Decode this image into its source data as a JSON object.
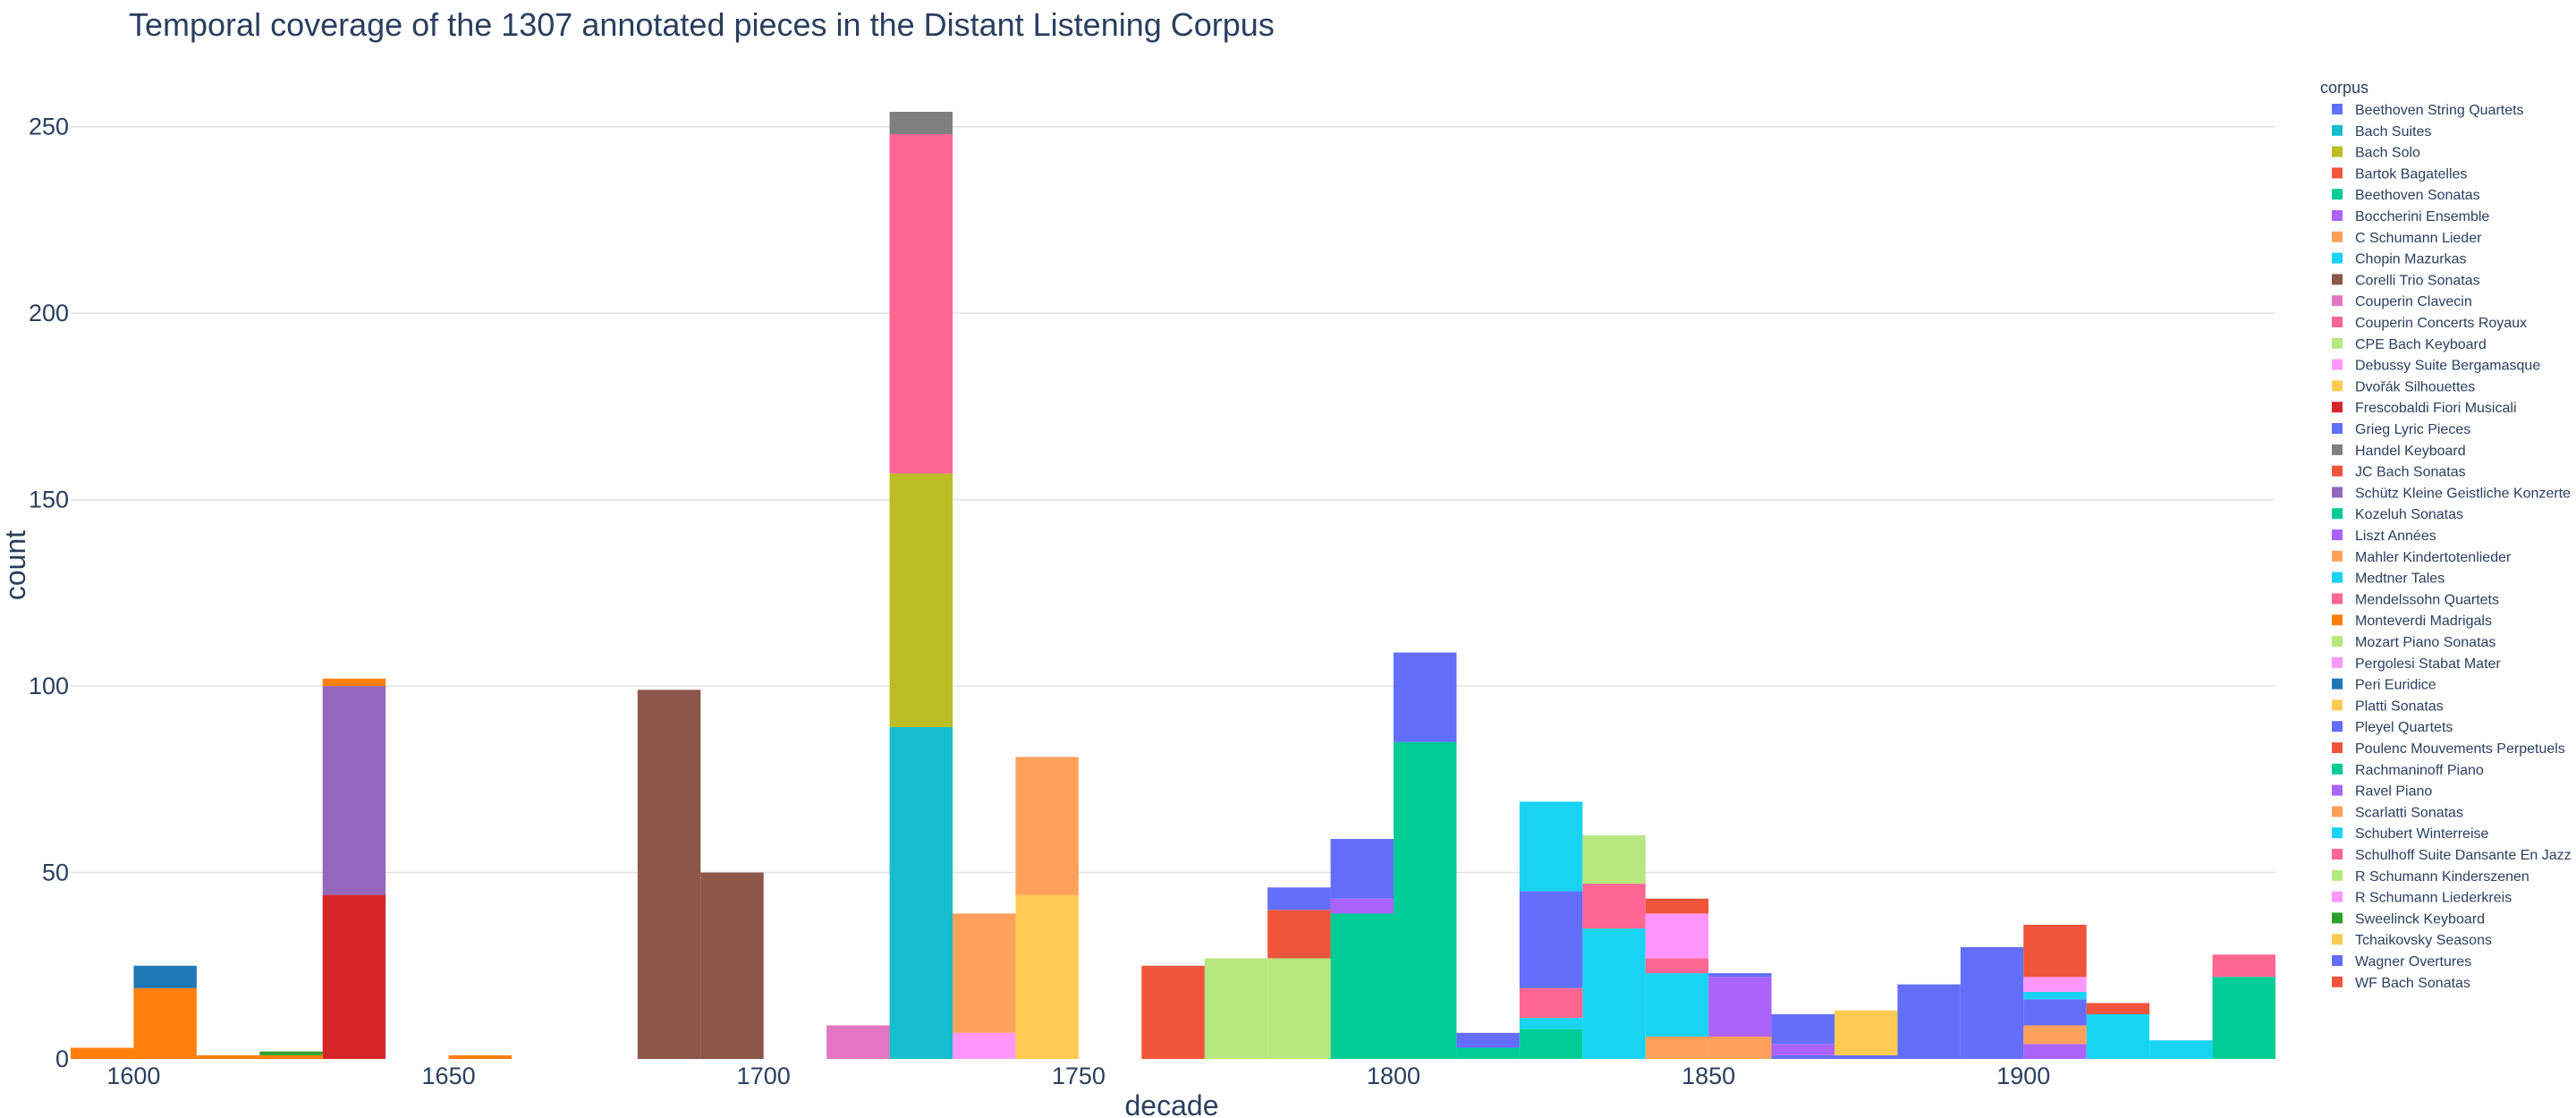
{
  "chart_data": {
    "type": "bar",
    "barmode": "stack",
    "title": "Temporal coverage of the 1307 annotated pieces in the Distant Listening Corpus",
    "xlabel": "decade",
    "ylabel": "count",
    "xlim": [
      1590,
      1940
    ],
    "ylim": [
      0,
      260
    ],
    "bin_width": 10,
    "xticks": [
      1600,
      1650,
      1700,
      1750,
      1800,
      1850,
      1900
    ],
    "yticks": [
      0,
      50,
      100,
      150,
      200,
      250
    ],
    "grid": true,
    "legend": {
      "title": "corpus",
      "placement": "right"
    },
    "series": [
      {
        "name": "Beethoven String Quartets",
        "color": "#636efa",
        "points": []
      },
      {
        "name": "Bach Suites",
        "color": "#17becf",
        "points": [
          [
            1720,
            89
          ]
        ]
      },
      {
        "name": "Bach Solo",
        "color": "#bcbd22",
        "points": [
          [
            1720,
            68
          ]
        ]
      },
      {
        "name": "Bartok Bagatelles",
        "color": "#ef553b",
        "points": []
      },
      {
        "name": "Beethoven Sonatas",
        "color": "#00cc96",
        "points": [
          [
            1790,
            39
          ],
          [
            1800,
            85
          ],
          [
            1820,
            8
          ]
        ]
      },
      {
        "name": "Boccherini Ensemble",
        "color": "#ab63fa",
        "points": [
          [
            1790,
            4
          ]
        ]
      },
      {
        "name": "C Schumann Lieder",
        "color": "#ffa15a",
        "points": [
          [
            1840,
            6
          ],
          [
            1850,
            6
          ]
        ]
      },
      {
        "name": "Chopin Mazurkas",
        "color": "#19d3f3",
        "points": [
          [
            1820,
            3
          ],
          [
            1830,
            35
          ],
          [
            1840,
            17
          ]
        ]
      },
      {
        "name": "Corelli Trio Sonatas",
        "color": "#8c564b",
        "points": [
          [
            1680,
            99
          ],
          [
            1690,
            50
          ]
        ]
      },
      {
        "name": "Couperin Clavecin",
        "color": "#e377c2",
        "points": [
          [
            1710,
            9
          ]
        ]
      },
      {
        "name": "Couperin Concerts Royaux",
        "color": "#ff6692",
        "points": [
          [
            1720,
            91
          ]
        ]
      },
      {
        "name": "CPE Bach Keyboard",
        "color": "#b6e880",
        "points": [
          [
            1770,
            27
          ],
          [
            1780,
            27
          ]
        ]
      },
      {
        "name": "Debussy Suite Bergamasque",
        "color": "#ff97ff",
        "points": []
      },
      {
        "name": "Dvořák Silhouettes",
        "color": "#fecb52",
        "points": []
      },
      {
        "name": "Frescobaldi Fiori Musicali",
        "color": "#d62728",
        "points": [
          [
            1630,
            44
          ]
        ]
      },
      {
        "name": "Grieg Lyric Pieces",
        "color": "#636efa",
        "points": [
          [
            1860,
            1
          ],
          [
            1870,
            1
          ]
        ]
      },
      {
        "name": "Handel Keyboard",
        "color": "#7f7f7f",
        "points": [
          [
            1720,
            6
          ]
        ]
      },
      {
        "name": "JC Bach Sonatas",
        "color": "#ef553b",
        "points": [
          [
            1780,
            13
          ]
        ]
      },
      {
        "name": "Schütz Kleine Geistliche Konzerte",
        "color": "#9467bd",
        "points": [
          [
            1630,
            56
          ]
        ]
      },
      {
        "name": "Kozeluh Sonatas",
        "color": "#00cc96",
        "points": [
          [
            1810,
            3
          ]
        ]
      },
      {
        "name": "Liszt Années",
        "color": "#ab63fa",
        "points": [
          [
            1850,
            16
          ],
          [
            1860,
            3
          ],
          [
            1900,
            4
          ]
        ]
      },
      {
        "name": "Mahler Kindertotenlieder",
        "color": "#ffa15a",
        "points": [
          [
            1900,
            5
          ]
        ]
      },
      {
        "name": "Medtner Tales",
        "color": "#19d3f3",
        "points": [
          [
            1910,
            12
          ],
          [
            1920,
            5
          ]
        ]
      },
      {
        "name": "Mendelssohn Quartets",
        "color": "#ff6692",
        "points": [
          [
            1820,
            8
          ],
          [
            1830,
            12
          ],
          [
            1840,
            4
          ]
        ]
      },
      {
        "name": "Monteverdi Madrigals",
        "color": "#ff7f0e",
        "points": [
          [
            1590,
            3
          ],
          [
            1600,
            19
          ],
          [
            1610,
            1
          ],
          [
            1620,
            1
          ],
          [
            1630,
            2
          ],
          [
            1650,
            1
          ]
        ]
      },
      {
        "name": "Mozart Piano Sonatas",
        "color": "#b6e880",
        "points": [
          [
            1830,
            13
          ]
        ]
      },
      {
        "name": "Pergolesi Stabat Mater",
        "color": "#ff97ff",
        "points": [
          [
            1730,
            7
          ]
        ]
      },
      {
        "name": "Peri Euridice",
        "color": "#1f77b4",
        "points": [
          [
            1600,
            6
          ]
        ]
      },
      {
        "name": "Platti Sonatas",
        "color": "#fecb52",
        "points": [
          [
            1740,
            44
          ]
        ]
      },
      {
        "name": "Pleyel Quartets",
        "color": "#636efa",
        "points": [
          [
            1780,
            6
          ],
          [
            1790,
            16
          ],
          [
            1800,
            24
          ],
          [
            1810,
            4
          ],
          [
            1820,
            26
          ],
          [
            1850,
            1
          ],
          [
            1860,
            8
          ],
          [
            1880,
            20
          ],
          [
            1890,
            30
          ],
          [
            1900,
            7
          ]
        ]
      },
      {
        "name": "Poulenc Mouvements Perpetuels",
        "color": "#ef553b",
        "points": [
          [
            1910,
            3
          ]
        ]
      },
      {
        "name": "Rachmaninoff Piano",
        "color": "#00cc96",
        "points": [
          [
            1930,
            22
          ]
        ]
      },
      {
        "name": "Ravel Piano",
        "color": "#ab63fa",
        "points": []
      },
      {
        "name": "Scarlatti Sonatas",
        "color": "#ffa15a",
        "points": [
          [
            1730,
            32
          ],
          [
            1740,
            37
          ]
        ]
      },
      {
        "name": "Schubert Winterreise",
        "color": "#19d3f3",
        "points": [
          [
            1820,
            24
          ],
          [
            1900,
            2
          ]
        ]
      },
      {
        "name": "Schulhoff Suite Dansante En Jazz",
        "color": "#ff6692",
        "points": [
          [
            1930,
            6
          ]
        ]
      },
      {
        "name": "R Schumann Kinderszenen",
        "color": "#b6e880",
        "points": [
          [
            1780,
            0
          ]
        ]
      },
      {
        "name": "R Schumann Liederkreis",
        "color": "#ff97ff",
        "points": [
          [
            1840,
            12
          ],
          [
            1900,
            4
          ]
        ]
      },
      {
        "name": "Sweelinck Keyboard",
        "color": "#2ca02c",
        "points": [
          [
            1620,
            1
          ]
        ]
      },
      {
        "name": "Tchaikovsky Seasons",
        "color": "#fecb52",
        "points": [
          [
            1870,
            12
          ],
          [
            1870.5,
            0
          ]
        ]
      },
      {
        "name": "Wagner Overtures",
        "color": "#636efa",
        "points": []
      },
      {
        "name": "WF Bach Sonatas",
        "color": "#ef553b",
        "points": [
          [
            1760,
            25
          ],
          [
            1840,
            4
          ],
          [
            1900,
            14
          ]
        ]
      }
    ]
  }
}
